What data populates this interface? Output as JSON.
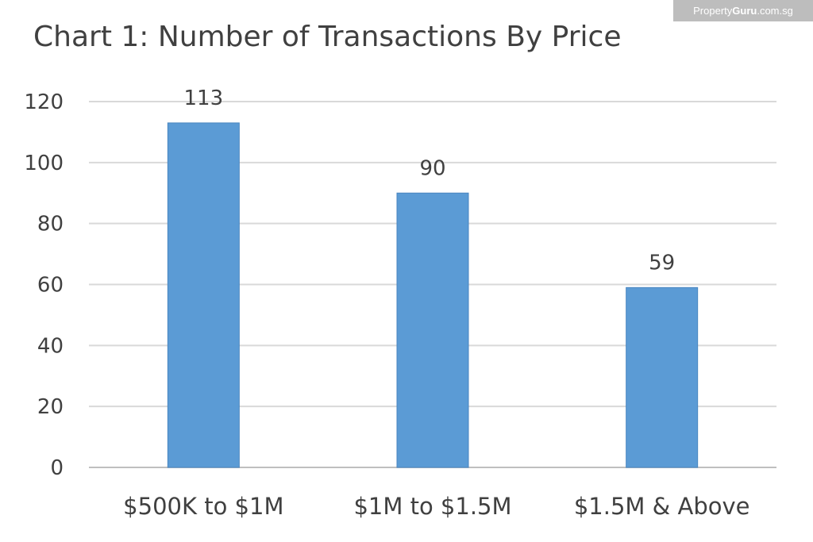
{
  "watermark": {
    "brand_prefix": "Property",
    "brand_bold": "Guru",
    "brand_suffix": ".com.sg"
  },
  "chart_data": {
    "type": "bar",
    "title": "Chart 1: Number of Transactions By Price",
    "xlabel": "",
    "ylabel": "",
    "categories": [
      "$500K to $1M",
      "$1M to $1.5M",
      "$1.5M & Above"
    ],
    "values": [
      113,
      90,
      59
    ],
    "data_labels": [
      "113",
      "90",
      "59"
    ],
    "ylim": [
      0,
      120
    ],
    "yticks": [
      0,
      20,
      40,
      60,
      80,
      100,
      120
    ],
    "grid": true,
    "legend": "none",
    "colors": {
      "bar": "#5b9bd5",
      "grid": "#d9d9d9",
      "axis": "#bfbfbf",
      "text": "#404040"
    }
  }
}
